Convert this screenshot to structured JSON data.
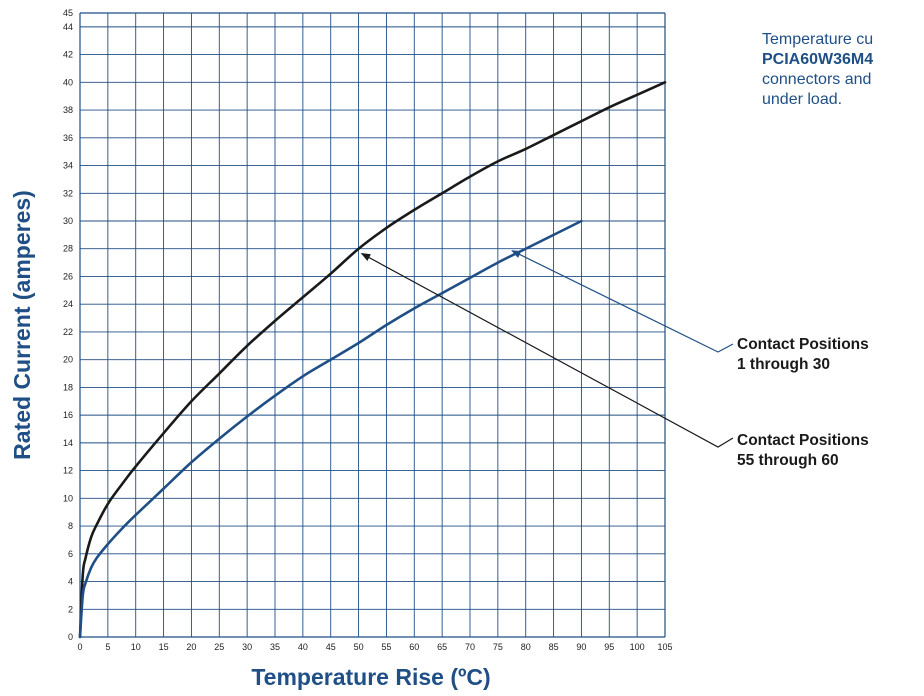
{
  "chart_data": {
    "type": "line",
    "xlabel": "Temperature Rise (ºC)",
    "ylabel": "Rated Current (amperes)",
    "xlim": [
      0,
      105
    ],
    "ylim": [
      0,
      45
    ],
    "x_ticks": [
      "0",
      "5",
      "10",
      "15",
      "20",
      "25",
      "30",
      "35",
      "40",
      "45",
      "50",
      "55",
      "60",
      "65",
      "70",
      "75",
      "80",
      "85",
      "90",
      "95",
      "100",
      "105"
    ],
    "y_ticks": [
      "0",
      "2",
      "4",
      "6",
      "8",
      "10",
      "12",
      "14",
      "16",
      "18",
      "20",
      "22",
      "24",
      "26",
      "28",
      "30",
      "32",
      "34",
      "36",
      "38",
      "40",
      "42",
      "44",
      "45"
    ],
    "grid": true,
    "series": [
      {
        "color": "#1a1a1a",
        "x": [
          0,
          0.5,
          1,
          2,
          3,
          5,
          7.5,
          10,
          15,
          20,
          25,
          30,
          35,
          40,
          45,
          50,
          55,
          60,
          65,
          70,
          75,
          80,
          85,
          90,
          95,
          100,
          105
        ],
        "y": [
          0,
          4.5,
          5.7,
          7.2,
          8.1,
          9.6,
          11.0,
          12.3,
          14.7,
          17.0,
          19.0,
          21.0,
          22.8,
          24.5,
          26.2,
          28.0,
          29.5,
          30.8,
          32.0,
          33.2,
          34.3,
          35.2,
          36.2,
          37.2,
          38.2,
          39.1,
          40.0
        ]
      },
      {
        "color": "#1f4f85",
        "x": [
          0,
          0.5,
          1,
          2,
          3,
          5,
          7.5,
          10,
          15,
          20,
          25,
          30,
          35,
          40,
          45,
          50,
          55,
          60,
          65,
          70,
          75,
          80,
          85,
          90
        ],
        "y": [
          0,
          3.0,
          3.9,
          5.0,
          5.7,
          6.7,
          7.8,
          8.8,
          10.7,
          12.6,
          14.3,
          15.9,
          17.4,
          18.8,
          20.0,
          21.2,
          22.5,
          23.7,
          24.8,
          25.9,
          27.0,
          28.0,
          29.0,
          30.0
        ]
      }
    ],
    "annotations": [
      {
        "lines": [
          "Contact Positions",
          "1 through 30"
        ],
        "color": "#1f4f85",
        "arrow_target": [
          77,
          28.0
        ]
      },
      {
        "lines": [
          "Contact Positions",
          "55 through 60"
        ],
        "color": "#1a1a1a",
        "arrow_target": [
          50,
          27.8
        ]
      }
    ]
  },
  "description": {
    "line1": "Temperature cu",
    "line2": "PCIA60W36M4",
    "line3": "connectors and",
    "line4": "under load."
  }
}
